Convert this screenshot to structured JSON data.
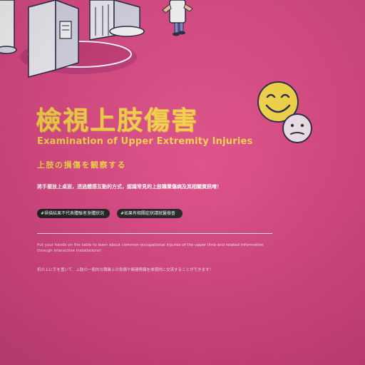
{
  "poster": {
    "title_zh": "檢視上肢傷害",
    "title_en": "Examination of Upper Extremity Injuries",
    "title_jp": "上肢の損傷を観察する",
    "instruction_zh": "將手擺放上桌面，透過體感互動的方式，認識常見的上肢職業傷病及其相關資訊唷！",
    "tags": [
      "#掃描結果不代表體驗者身體狀況",
      "#如果有相關症狀請就醫檢查"
    ],
    "body_en": "Put your hands on the table to learn about common occupational injuries of the upper limb and related information through interactive installations!",
    "body_jp": "机の上に手を置いて、上肢の一般的な職業上の負傷や関連情報を体感的に交流することができます！"
  },
  "colors": {
    "background": "#dc4a84",
    "title": "#f7d34c",
    "tag_bg": "#222222",
    "text": "#ffffff"
  },
  "icons": [
    "smiley-face-icon",
    "neutral-face-icon",
    "museum-illustration"
  ]
}
